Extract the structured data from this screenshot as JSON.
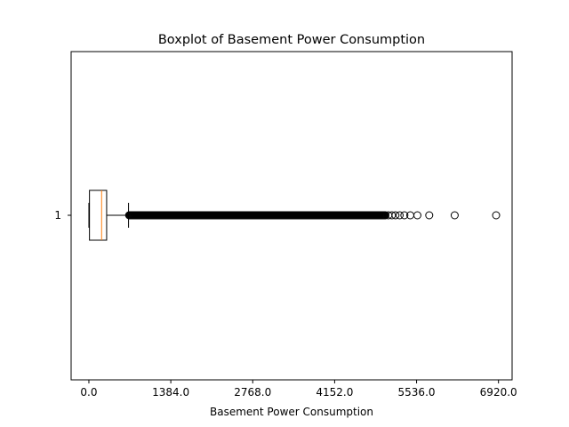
{
  "chart_data": {
    "type": "boxplot",
    "title": "Boxplot of Basement Power Consumption",
    "xlabel": "Basement Power Consumption",
    "ylabel": "",
    "orientation": "horizontal",
    "xlim": [
      -300,
      7150
    ],
    "x_ticks": [
      0,
      1384,
      2768,
      4152,
      5536,
      6920
    ],
    "x_tick_labels": [
      "0.0",
      "1384.0",
      "2768.0",
      "4152.0",
      "5536.0",
      "6920.0"
    ],
    "y_tick_labels": [
      "1"
    ],
    "grid": false,
    "series": [
      {
        "label": "1",
        "whisker_low": 0,
        "q1": 10,
        "median": 215,
        "q3": 300,
        "whisker_high": 670,
        "outlier_range_start": 680,
        "outlier_dense_end": 5020,
        "outliers_sparse": [
          5060,
          5120,
          5180,
          5250,
          5330,
          5430,
          5550,
          5750,
          6180,
          6880
        ]
      }
    ],
    "colors": {
      "box": "#000000",
      "median": "#ff7f0e",
      "outlier": "#000000"
    }
  }
}
